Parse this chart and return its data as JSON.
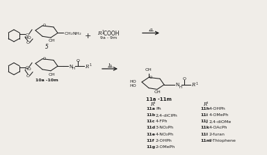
{
  "background": "#f0ede8",
  "left_col": [
    [
      "11a",
      "Ph"
    ],
    [
      "11b",
      "2,4-diClPh"
    ],
    [
      "11c",
      "4-FPh"
    ],
    [
      "11d",
      "3-NO₂Ph"
    ],
    [
      "11e",
      "4-NO₂Ph"
    ],
    [
      "11f",
      "2-OHPh"
    ],
    [
      "11g",
      "2-OMePh"
    ]
  ],
  "right_col": [
    [
      "11h",
      "4-OHPh"
    ],
    [
      "11i",
      "4-OMePh"
    ],
    [
      "11j",
      "2,4-diOMe"
    ],
    [
      "11k",
      "4-OAcPh"
    ],
    [
      "11l",
      "2-furan"
    ],
    [
      "11m",
      "2-Thiophene"
    ]
  ]
}
